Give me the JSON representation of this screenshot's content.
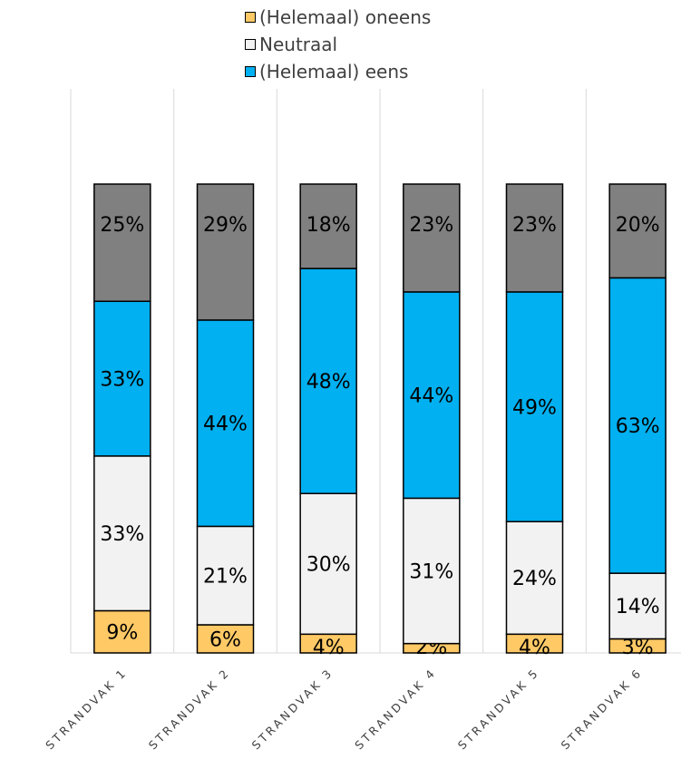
{
  "chart_data": {
    "type": "bar",
    "stacked": true,
    "percent": true,
    "categories": [
      "STRANDVAK 1",
      "STRANDVAK 2",
      "STRANDVAK 3",
      "STRANDVAK 4",
      "STRANDVAK 5",
      "STRANDVAK 6"
    ],
    "series": [
      {
        "values": [
          9,
          6,
          4,
          2,
          4,
          3
        ],
        "color": "#FFC966"
      },
      {
        "values": [
          33,
          21,
          30,
          31,
          24,
          14
        ],
        "color": "#F2F2F2"
      },
      {
        "values": [
          33,
          44,
          48,
          44,
          49,
          63
        ],
        "color": "#00B0F0"
      },
      {
        "values": [
          25,
          29,
          18,
          23,
          23,
          20
        ],
        "color": "#808080"
      }
    ],
    "legend": {
      "position": "top",
      "entries": [
        {
          "label": "(Helemaal) oneens",
          "color": "#FFC966"
        },
        {
          "label": "Neutraal",
          "color": "#F2F2F2"
        },
        {
          "label": "(Helemaal) eens",
          "color": "#00B0F0"
        }
      ]
    },
    "ylim": [
      0,
      100
    ],
    "grid": "vertical category separators"
  }
}
